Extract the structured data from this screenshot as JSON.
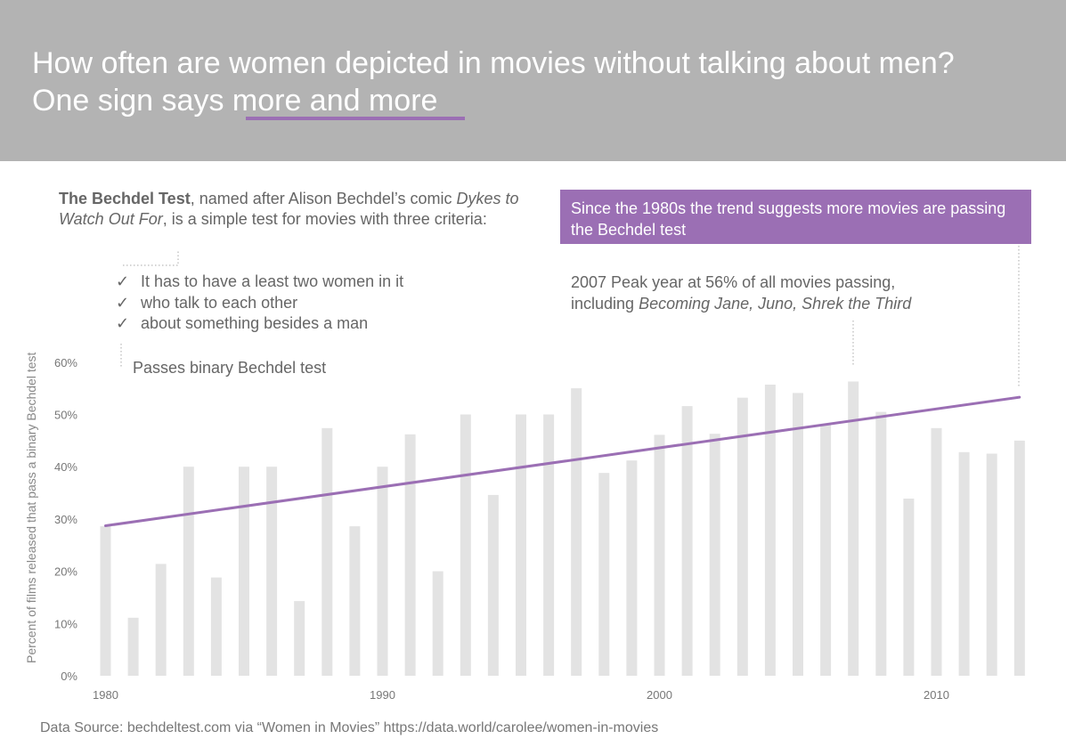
{
  "header": {
    "title_line1": "How often are women depicted in movies without talking about men?",
    "title_line2_prefix": "One sign says ",
    "title_line2_highlight": "more and more",
    "accent_color": "#9b6fb4",
    "background_color": "#b3b3b3"
  },
  "intro": {
    "bold": "The Bechdel Test",
    "text1": ", named after Alison Bechdel’s comic ",
    "italic": "Dykes to Watch Out For",
    "text2": ", is a simple test for movies with three criteria:"
  },
  "criteria": [
    {
      "check": "✓",
      "text": "It has to have a least two women in it"
    },
    {
      "check": "✓",
      "text": "who talk to each other"
    },
    {
      "check": "✓",
      "text": "about something besides a man"
    }
  ],
  "passes_label": "Passes binary Bechdel test",
  "callout": "Since the 1980s the trend suggests more movies are passing the Bechdel test",
  "peak": {
    "line1": "2007 Peak year at 56% of all movies passing,",
    "line2_prefix": "including ",
    "line2_italic": "Becoming Jane, Juno, Shrek the Third"
  },
  "source": "Data Source: bechdeltest.com via “Women in Movies” https://data.world/carolee/women-in-movies",
  "chart_data": {
    "type": "bar",
    "title": "How often are women depicted in movies without talking about men?",
    "ylabel": "Percent of films released that pass a binary Bechdel test",
    "xlabel": "",
    "ylim": [
      0,
      60
    ],
    "yticks": [
      0,
      10,
      20,
      30,
      40,
      50,
      60
    ],
    "ytick_labels": [
      "0%",
      "10%",
      "20%",
      "30%",
      "40%",
      "50%",
      "60%"
    ],
    "xticks": [
      1980,
      1990,
      2000,
      2010
    ],
    "xtick_labels": [
      "1980",
      "1990",
      "2000",
      "2010"
    ],
    "x": [
      1980,
      1981,
      1982,
      1983,
      1984,
      1985,
      1986,
      1987,
      1988,
      1989,
      1990,
      1991,
      1992,
      1993,
      1994,
      1995,
      1996,
      1997,
      1998,
      1999,
      2000,
      2001,
      2002,
      2003,
      2004,
      2005,
      2006,
      2007,
      2008,
      2009,
      2010,
      2011,
      2012,
      2013
    ],
    "values": [
      28.6,
      11.1,
      21.4,
      40.0,
      18.8,
      40.0,
      40.0,
      14.3,
      47.4,
      28.6,
      40.0,
      46.2,
      20.0,
      50.0,
      34.6,
      50.0,
      50.0,
      55.0,
      38.8,
      41.2,
      46.1,
      51.6,
      46.3,
      53.2,
      55.7,
      54.1,
      48.1,
      56.3,
      50.5,
      33.9,
      47.4,
      42.8,
      42.5,
      45.0
    ],
    "trend": {
      "name": "Trend",
      "x": [
        1980,
        2013
      ],
      "values": [
        28.7,
        53.3
      ]
    },
    "bar_color": "#e3e3e3",
    "trend_color": "#9b6fb4",
    "grid": false
  }
}
